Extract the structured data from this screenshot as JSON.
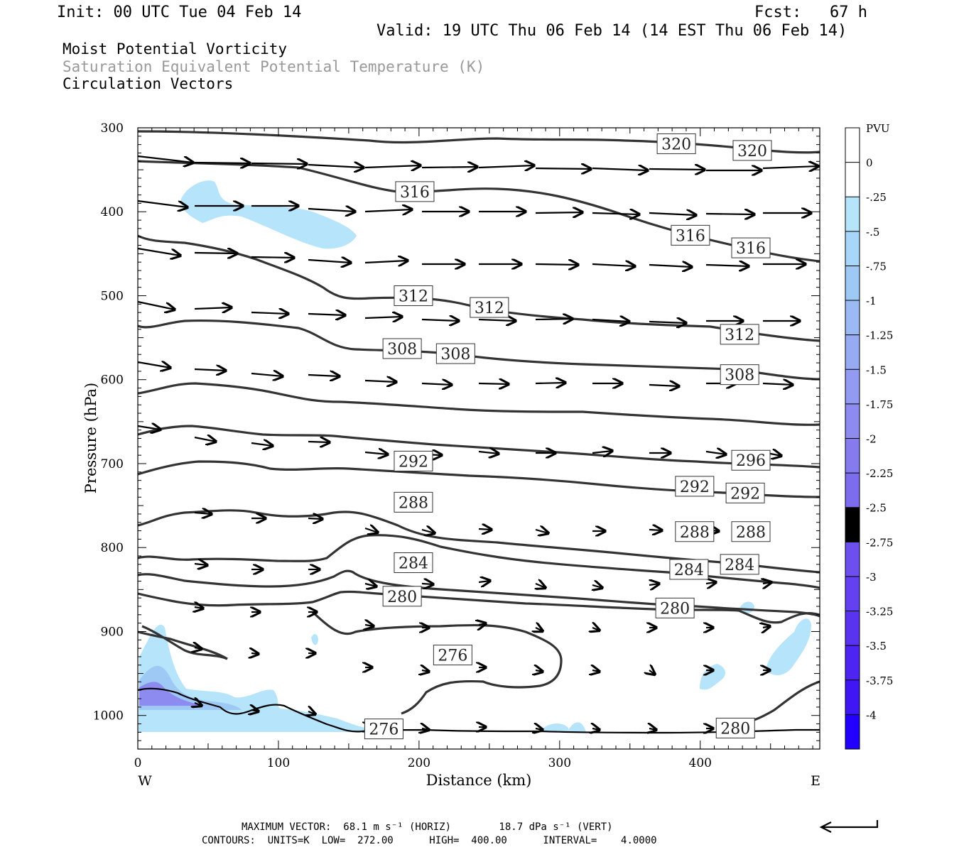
{
  "header": {
    "init": "Init: 00 UTC Tue 04 Feb 14",
    "fcst": "Fcst:   67 h",
    "valid": "Valid: 19 UTC Thu 06 Feb 14 (14 EST Thu 06 Feb 14)",
    "fields": [
      "Moist Potential Vorticity",
      "Saturation Equivalent Potential Temperature (K)",
      "Circulation Vectors"
    ]
  },
  "footer": {
    "max_vector": "MAXIMUM VECTOR:  68.1 m s⁻¹ (HORIZ)        18.7 dPa s⁻¹ (VERT)",
    "contours": "CONTOURS:  UNITS=K  LOW=  272.00      HIGH=  400.00      INTERVAL=    4.0000"
  },
  "chart_data": {
    "type": "contour",
    "xlabel": "Distance (km)",
    "ylabel": "Pressure (hPa)",
    "xlim": [
      0,
      485
    ],
    "ylim": [
      1040,
      300
    ],
    "x_ticks": [
      0,
      100,
      200,
      300,
      400
    ],
    "y_ticks": [
      300,
      400,
      500,
      600,
      700,
      800,
      900,
      1000
    ],
    "x_end_labels": {
      "left": "W",
      "right": "E"
    },
    "colorbar": {
      "unit": "PVU",
      "levels": [
        0,
        -0.25,
        -0.5,
        -0.75,
        -1,
        -1.25,
        -1.5,
        -1.75,
        -2,
        -2.25,
        -2.5,
        -2.75,
        -3,
        -3.25,
        -3.5,
        -3.75,
        -4
      ],
      "labels": [
        "0",
        "-.25",
        "-.5",
        "-.75",
        "-1",
        "-1.25",
        "-1.5",
        "-1.75",
        "-2",
        "-2.25",
        "-2.5",
        "-2.75",
        "-3",
        "-3.25",
        "-3.5",
        "-3.75",
        "-4"
      ],
      "colors": [
        "#ffffff",
        "#b5e4fb",
        "#a8d6f8",
        "#9ec9f5",
        "#9bb9f3",
        "#96abf2",
        "#929af1",
        "#8d8bf0",
        "#857bef",
        "#7e6cef",
        "#765deff",
        "#6d4ff0",
        "#6441f0",
        "#5a33f1",
        "#4e24f2",
        "#3f16f4",
        "#2200ff"
      ]
    },
    "contour_labels": [
      {
        "value": "320",
        "x": 383,
        "p": 319
      },
      {
        "value": "320",
        "x": 437,
        "p": 327
      },
      {
        "value": "316",
        "x": 197,
        "p": 376
      },
      {
        "value": "316",
        "x": 393,
        "p": 428
      },
      {
        "value": "316",
        "x": 436,
        "p": 443
      },
      {
        "value": "312",
        "x": 196,
        "p": 500
      },
      {
        "value": "312",
        "x": 250,
        "p": 514
      },
      {
        "value": "312",
        "x": 428,
        "p": 546
      },
      {
        "value": "308",
        "x": 188,
        "p": 563
      },
      {
        "value": "308",
        "x": 226,
        "p": 569
      },
      {
        "value": "308",
        "x": 428,
        "p": 594
      },
      {
        "value": "292",
        "x": 196,
        "p": 697
      },
      {
        "value": "296",
        "x": 436,
        "p": 696
      },
      {
        "value": "292",
        "x": 396,
        "p": 727
      },
      {
        "value": "292",
        "x": 432,
        "p": 735
      },
      {
        "value": "288",
        "x": 196,
        "p": 746
      },
      {
        "value": "288",
        "x": 396,
        "p": 781
      },
      {
        "value": "288",
        "x": 436,
        "p": 781
      },
      {
        "value": "284",
        "x": 196,
        "p": 818
      },
      {
        "value": "284",
        "x": 392,
        "p": 826
      },
      {
        "value": "284",
        "x": 428,
        "p": 820
      },
      {
        "value": "280",
        "x": 188,
        "p": 858
      },
      {
        "value": "280",
        "x": 382,
        "p": 872
      },
      {
        "value": "276",
        "x": 224,
        "p": 928
      },
      {
        "value": "276",
        "x": 175,
        "p": 1016
      },
      {
        "value": "280",
        "x": 425,
        "p": 1015
      }
    ]
  }
}
